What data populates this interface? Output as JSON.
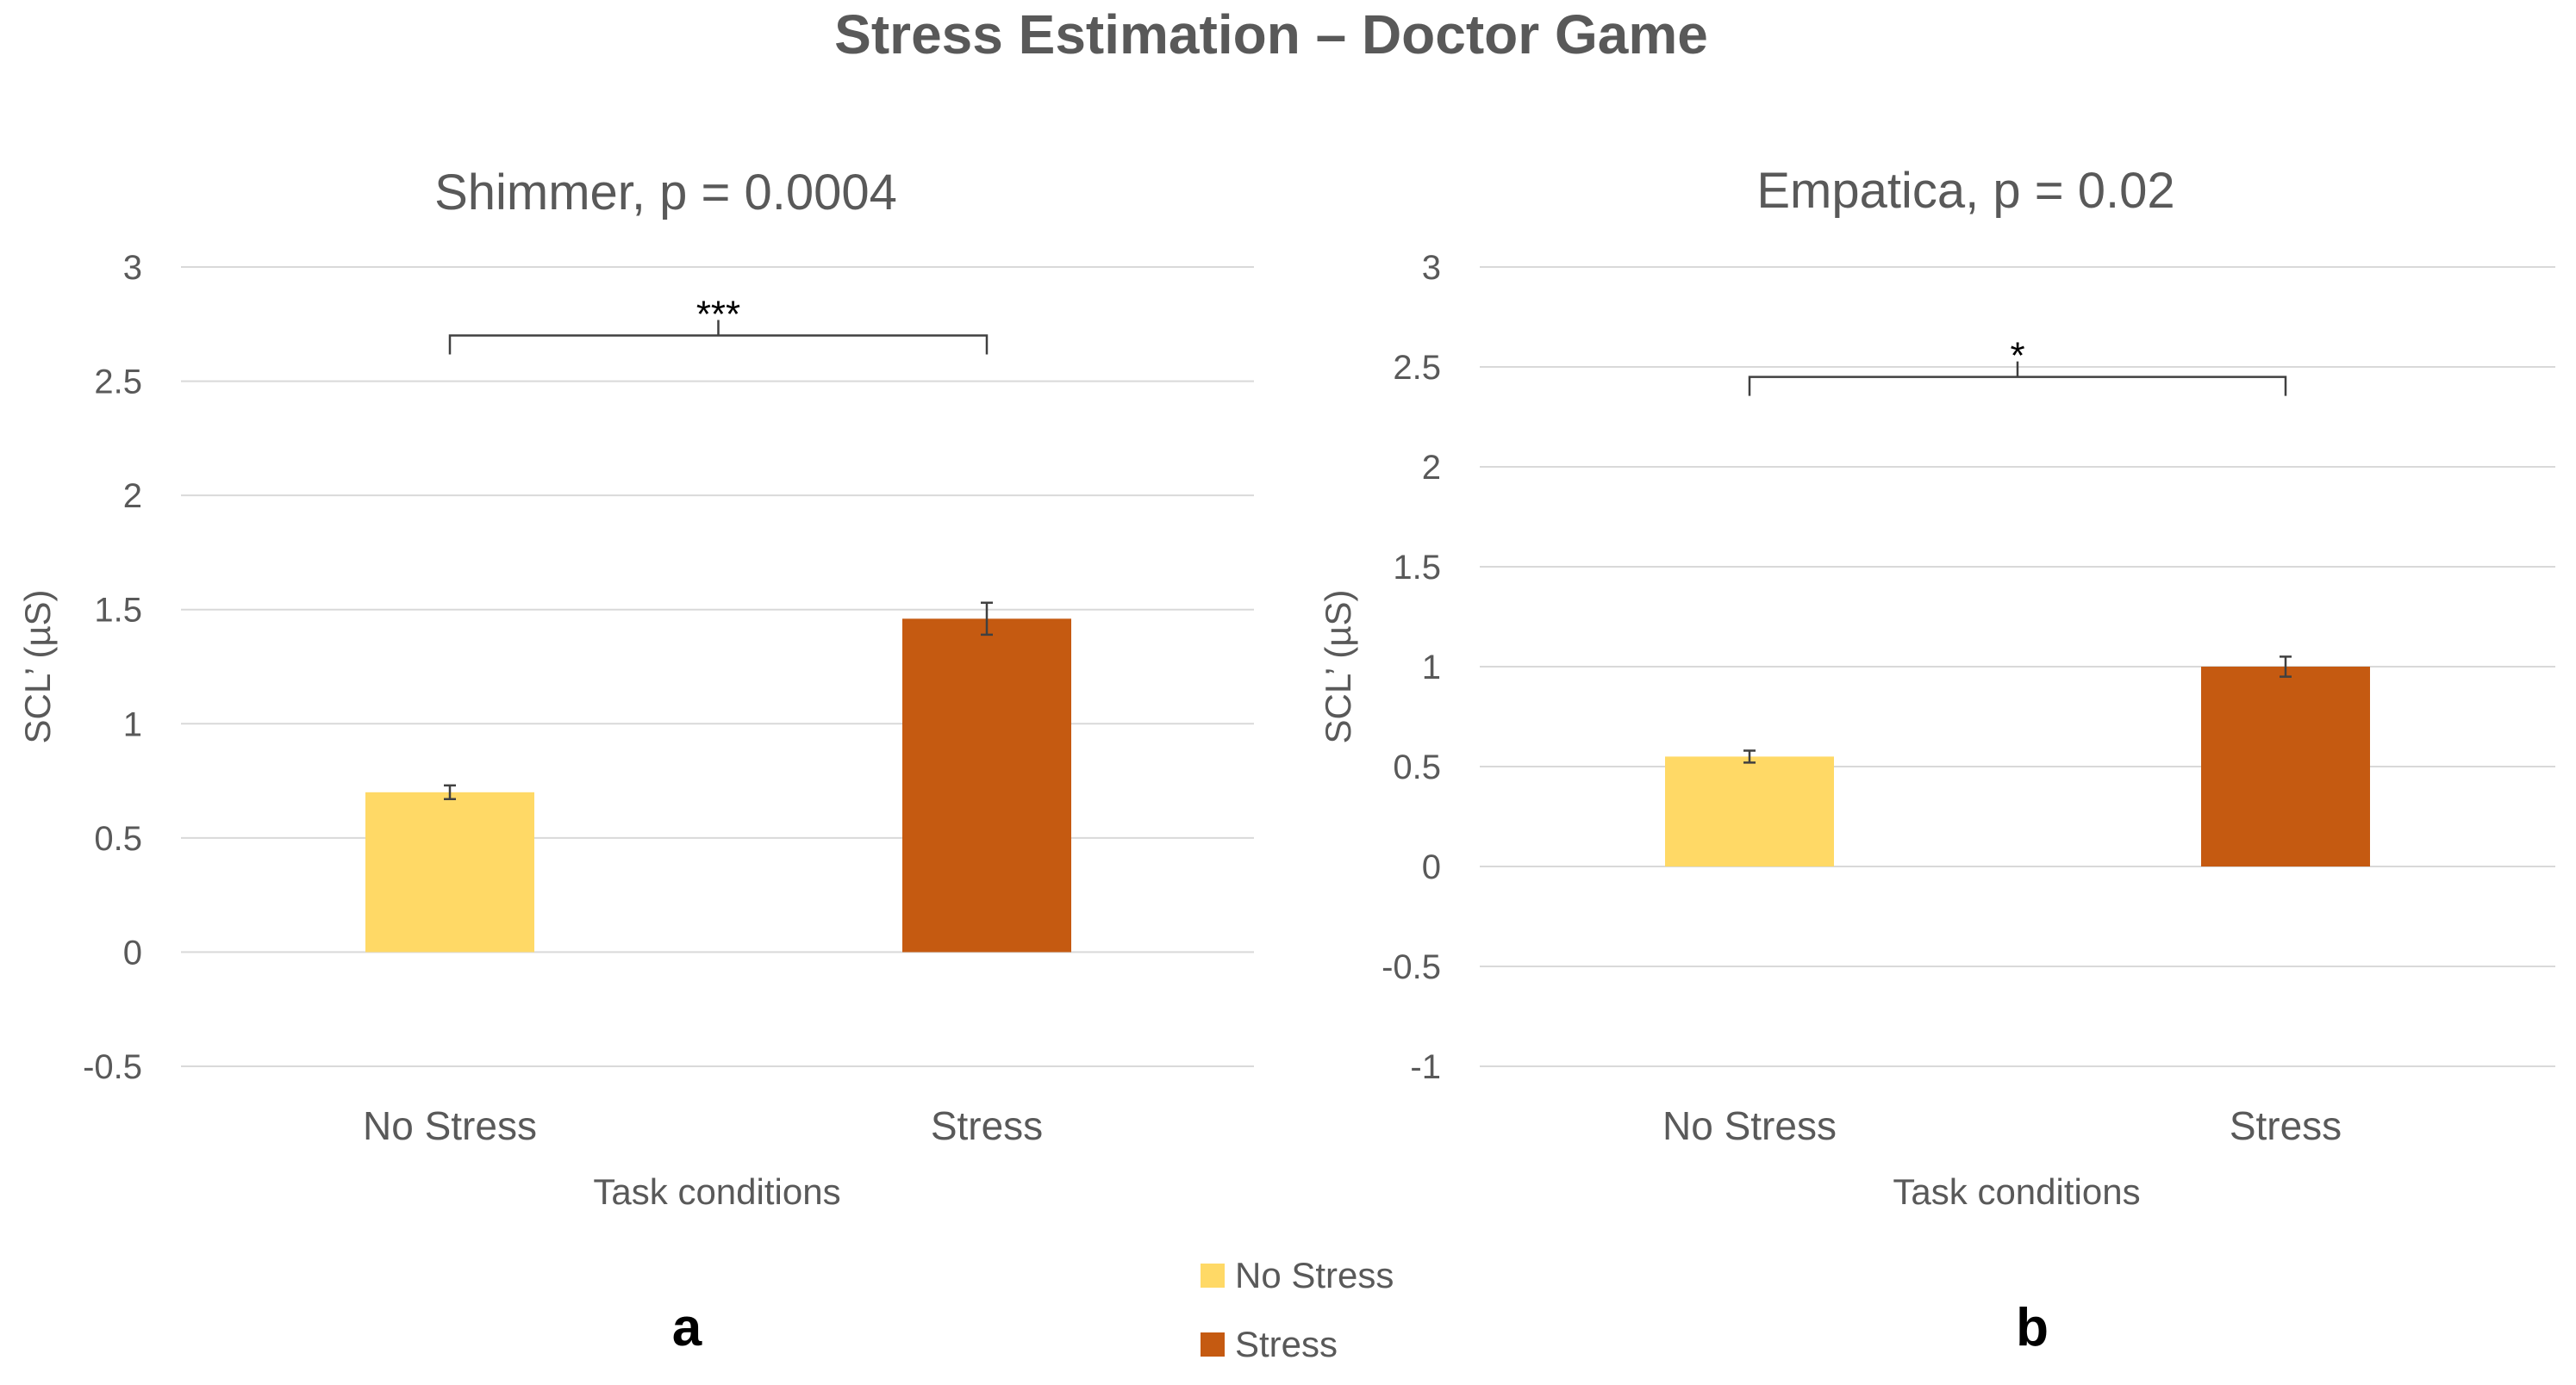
{
  "figure": {
    "title": "Stress Estimation – Doctor Game",
    "legend": [
      {
        "label": "No Stress",
        "color": "#FFD966"
      },
      {
        "label": "Stress",
        "color": "#C55A11"
      }
    ]
  },
  "chart_data": [
    {
      "type": "bar",
      "panel": "a",
      "title": "Shimmer, p = 0.0004",
      "xlabel": "Task conditions",
      "ylabel": "SCL’ (µS)",
      "categories": [
        "No Stress",
        "Stress"
      ],
      "values": [
        0.7,
        1.46
      ],
      "errors": [
        0.03,
        0.07
      ],
      "colors": [
        "#FFD966",
        "#C55A11"
      ],
      "ylim": [
        -0.5,
        3
      ],
      "yticks": [
        -0.5,
        0,
        0.5,
        1,
        1.5,
        2,
        2.5,
        3
      ],
      "ytick_labels": [
        "-0.5",
        "0",
        "0.5",
        "1",
        "1.5",
        "2",
        "2.5",
        "3"
      ],
      "grid": true,
      "significance": {
        "label": "***",
        "level": 2.7
      }
    },
    {
      "type": "bar",
      "panel": "b",
      "title": "Empatica, p = 0.02",
      "xlabel": "Task conditions",
      "ylabel": "SCL’ (µS)",
      "categories": [
        "No Stress",
        "Stress"
      ],
      "values": [
        0.55,
        1.0
      ],
      "errors": [
        0.03,
        0.05
      ],
      "colors": [
        "#FFD966",
        "#C55A11"
      ],
      "ylim": [
        -1,
        3
      ],
      "yticks": [
        -1,
        -0.5,
        0,
        0.5,
        1,
        1.5,
        2,
        2.5,
        3
      ],
      "ytick_labels": [
        "-1",
        "-0.5",
        "0",
        "0.5",
        "1",
        "1.5",
        "2",
        "2.5",
        "3"
      ],
      "grid": true,
      "significance": {
        "label": "*",
        "level": 2.45
      }
    }
  ]
}
